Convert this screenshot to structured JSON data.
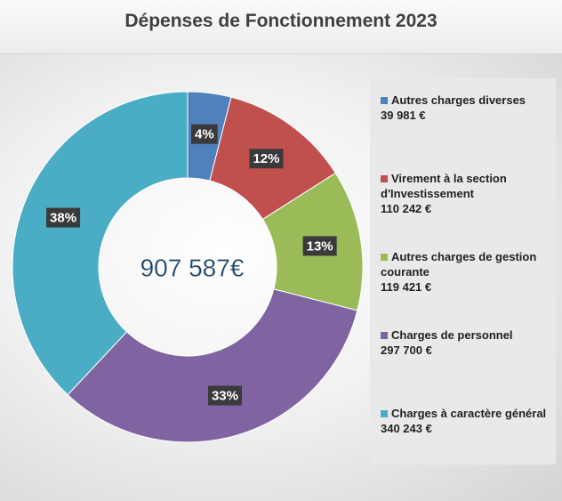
{
  "chart_data": {
    "type": "donut",
    "title": "Dépenses de Fonctionnement 2023",
    "center_label": "907 587€",
    "categories": [
      "Autres charges diverses",
      "Virement à la section d'Investissement",
      "Autres charges de gestion courante",
      "Charges de personnel",
      "Charges à caractère général"
    ],
    "values": [
      4,
      12,
      13,
      33,
      38
    ],
    "value_labels": [
      "4%",
      "12%",
      "13%",
      "33%",
      "38%"
    ],
    "amount_labels": [
      "39 981 €",
      "110 242 €",
      "119 421 €",
      "297 700 €",
      "340 243 €"
    ],
    "colors": [
      "#4f81bd",
      "#c0504d",
      "#9bbb59",
      "#8064a2",
      "#4bacc6"
    ],
    "legend": "right"
  }
}
